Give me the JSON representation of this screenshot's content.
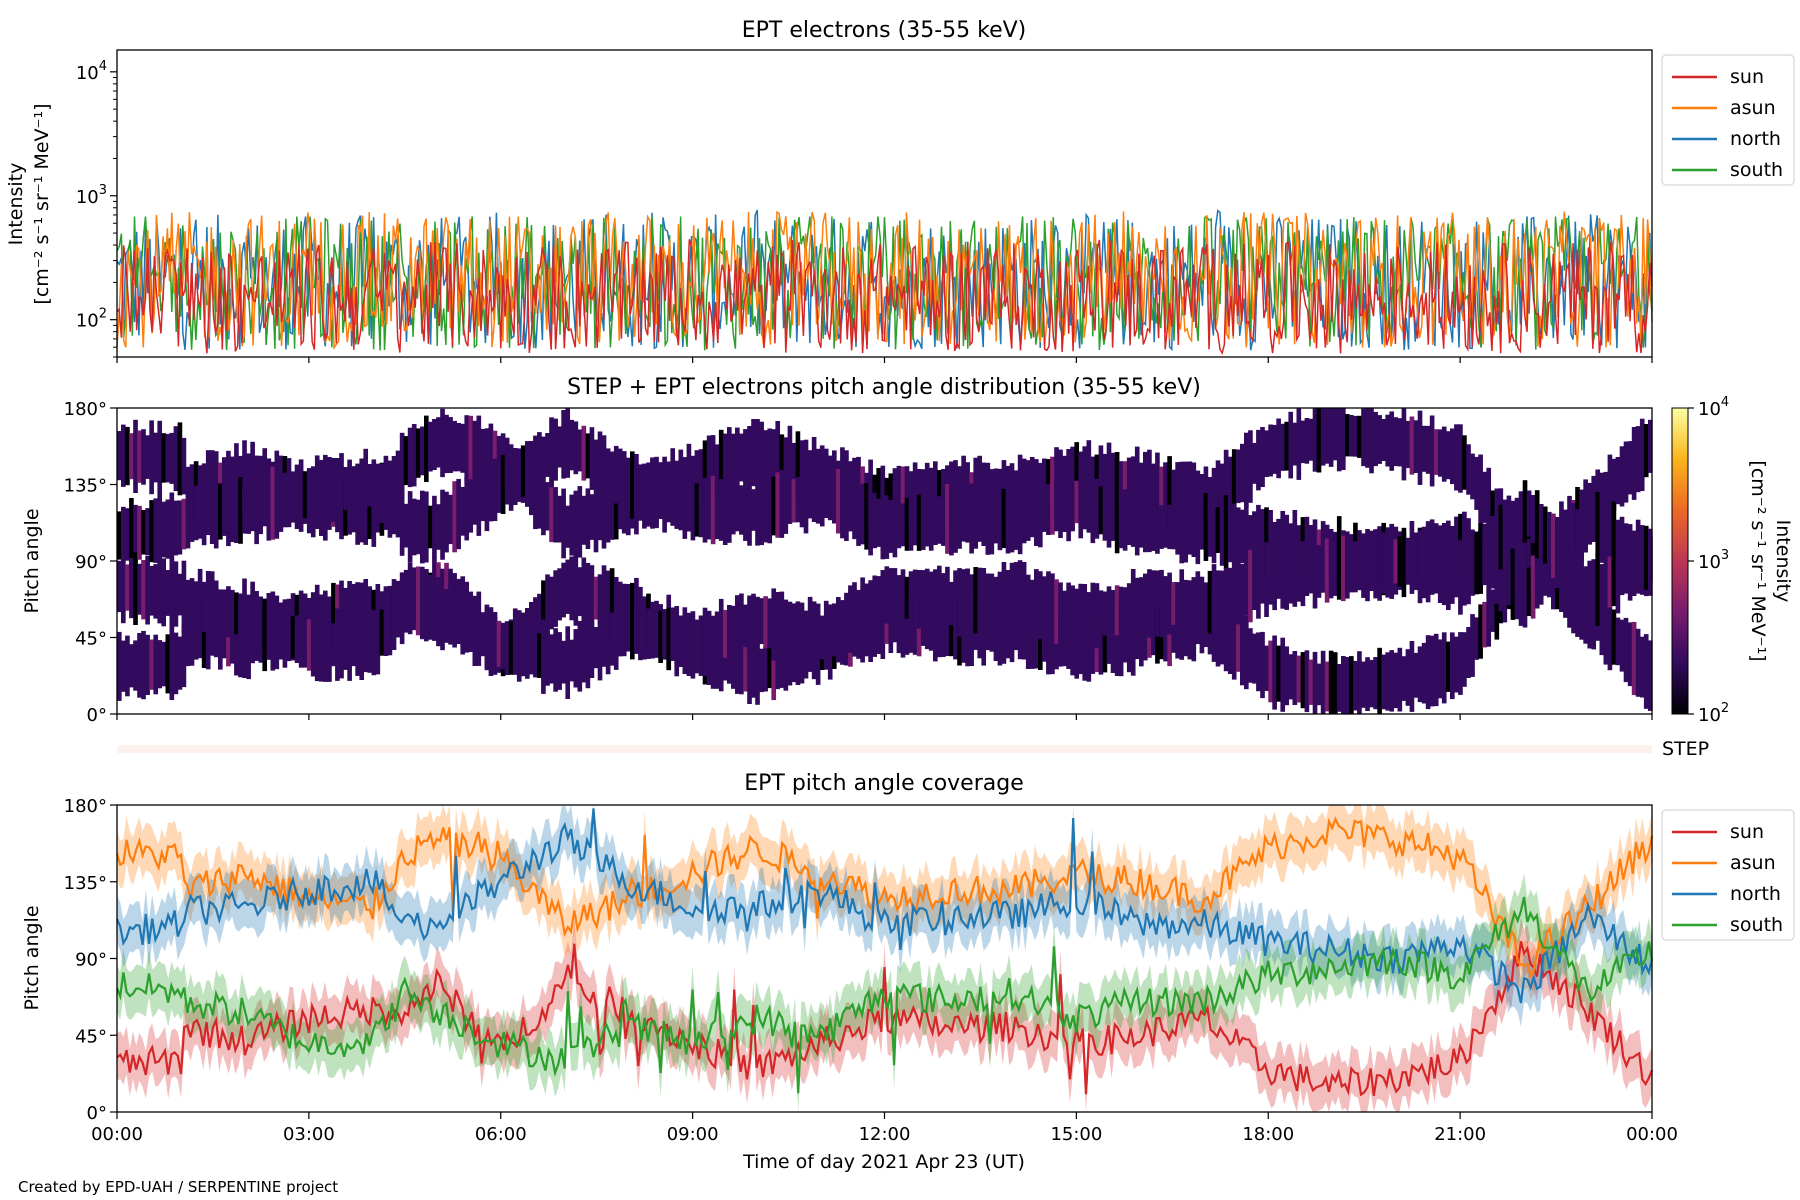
{
  "chart_data": [
    {
      "type": "line",
      "title": "EPT electrons (35-55 keV)",
      "xlabel": "",
      "ylabel": "Intensity",
      "ylabel_unit": "[cm⁻² s⁻¹ sr⁻¹ MeV⁻¹]",
      "yscale": "log",
      "ylim": [
        50,
        15000
      ],
      "yticks": [
        100,
        1000,
        10000
      ],
      "ytick_labels": [
        {
          "base": "10",
          "exp": "2"
        },
        {
          "base": "10",
          "exp": "3"
        },
        {
          "base": "10",
          "exp": "4"
        }
      ],
      "xlim_hours": [
        0,
        24
      ],
      "legend_position": "outside-top-right",
      "series": [
        {
          "name": "north",
          "color": "#1f77b4",
          "typical": 200,
          "spread": 0.55,
          "max": 780
        },
        {
          "name": "south",
          "color": "#2ca02c",
          "typical": 200,
          "spread": 0.55,
          "max": 680
        },
        {
          "name": "asun",
          "color": "#ff7f0e",
          "typical": 210,
          "spread": 0.55,
          "max": 760
        },
        {
          "name": "sun",
          "color": "#d62728",
          "typical": 150,
          "spread": 0.45,
          "max": 450
        }
      ],
      "legend_order": [
        "sun",
        "asun",
        "north",
        "south"
      ]
    },
    {
      "type": "heatmap",
      "title": "STEP + EPT electrons pitch angle distribution (35-55 keV)",
      "xlabel": "",
      "ylabel": "Pitch angle",
      "ylim": [
        0,
        180
      ],
      "yticks": [
        "0°",
        "45°",
        "90°",
        "135°",
        "180°"
      ],
      "xlim_hours": [
        0,
        24
      ],
      "colorbar": {
        "label": "Intensity",
        "unit": "[cm⁻² s⁻¹ sr⁻¹ MeV⁻¹]",
        "scale": "log",
        "range": [
          100,
          10000
        ],
        "ticks": [
          {
            "base": "10",
            "exp": "2"
          },
          {
            "base": "10",
            "exp": "3"
          },
          {
            "base": "10",
            "exp": "4"
          }
        ],
        "colormap": [
          "#000004",
          "#320a5e",
          "#781c6d",
          "#bc3754",
          "#ed6925",
          "#fbb61a",
          "#fcffa4"
        ]
      },
      "note_fill": "mostly low intensity (dark purple) with gaps at sensor-view boundaries"
    },
    {
      "type": "heatmap",
      "title": "",
      "ylabel": "",
      "row_label": "STEP",
      "fill_color": "#fdf1ec"
    },
    {
      "type": "line",
      "title": "EPT pitch angle coverage",
      "xlabel": "Time of day 2021 Apr 23 (UT)",
      "ylabel": "Pitch angle",
      "ylim": [
        0,
        180
      ],
      "yticks": [
        "0°",
        "45°",
        "90°",
        "135°",
        "180°"
      ],
      "xlim_hours": [
        0,
        24
      ],
      "xtick_labels": [
        "00:00",
        "03:00",
        "06:00",
        "09:00",
        "12:00",
        "15:00",
        "18:00",
        "21:00",
        "00:00"
      ],
      "legend_position": "outside-top-right",
      "band_halfwidth_deg": 14,
      "series": [
        {
          "name": "sun",
          "color": "#d62728",
          "hours": [
            0,
            1,
            1.05,
            2,
            3,
            4,
            4.5,
            5,
            6,
            7,
            8,
            9,
            10,
            11,
            12,
            13,
            14,
            15,
            16,
            17,
            18,
            19,
            20,
            21,
            22,
            23,
            24
          ],
          "values": [
            28,
            30,
            50,
            42,
            55,
            60,
            60,
            75,
            35,
            75,
            60,
            40,
            25,
            40,
            55,
            50,
            50,
            40,
            45,
            55,
            25,
            15,
            20,
            30,
            95,
            60,
            20
          ]
        },
        {
          "name": "asun",
          "color": "#ff7f0e",
          "hours": [
            0,
            1,
            1.05,
            2,
            3,
            4,
            4.5,
            5,
            6,
            7,
            8,
            9,
            10,
            11,
            12,
            13,
            14,
            15,
            16,
            17,
            18,
            19,
            20,
            21,
            22,
            23,
            24
          ],
          "values": [
            152,
            150,
            130,
            140,
            125,
            120,
            150,
            160,
            150,
            110,
            125,
            140,
            155,
            140,
            125,
            130,
            130,
            140,
            135,
            125,
            155,
            165,
            160,
            150,
            85,
            120,
            160
          ]
        },
        {
          "name": "north",
          "color": "#1f77b4",
          "hours": [
            0,
            1,
            1.05,
            2,
            3,
            4,
            4.5,
            5,
            6,
            7,
            8,
            9,
            10,
            11,
            12,
            13,
            14,
            15,
            16,
            17,
            18,
            19,
            20,
            21,
            22,
            23,
            24
          ],
          "values": [
            105,
            110,
            118,
            120,
            130,
            135,
            110,
            110,
            135,
            160,
            135,
            120,
            120,
            130,
            110,
            115,
            115,
            125,
            110,
            110,
            100,
            95,
            90,
            100,
            70,
            115,
            85
          ]
        },
        {
          "name": "south",
          "color": "#2ca02c",
          "hours": [
            0,
            1,
            1.05,
            2,
            3,
            4,
            4.5,
            5,
            6,
            7,
            8,
            9,
            10,
            11,
            12,
            13,
            14,
            15,
            16,
            17,
            18,
            19,
            20,
            21,
            22,
            23,
            24
          ],
          "values": [
            75,
            70,
            65,
            58,
            40,
            42,
            70,
            60,
            40,
            30,
            50,
            40,
            55,
            45,
            70,
            65,
            70,
            55,
            65,
            65,
            80,
            85,
            90,
            80,
            120,
            70,
            95
          ]
        }
      ],
      "legend_order": [
        "sun",
        "asun",
        "north",
        "south"
      ]
    }
  ],
  "footer": {
    "credit": "Created by EPD-UAH / SERPENTINE project"
  }
}
